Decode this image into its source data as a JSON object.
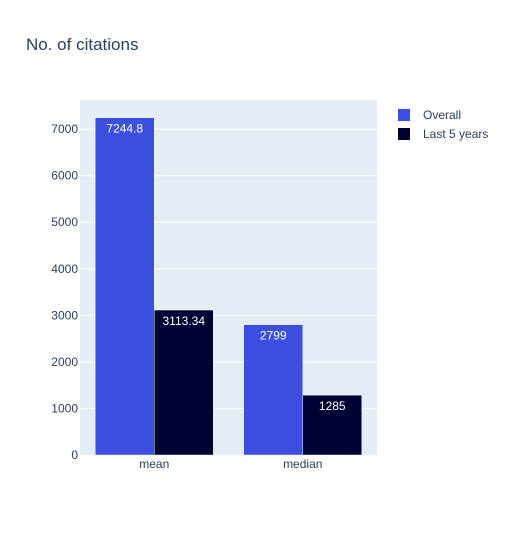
{
  "chart_data": {
    "type": "bar",
    "title": "No. of citations",
    "categories": [
      "mean",
      "median"
    ],
    "series": [
      {
        "name": "Overall",
        "values": [
          7244.8,
          2799
        ],
        "labels": [
          "7244.8",
          "2799"
        ],
        "color": "#3c4fe0"
      },
      {
        "name": "Last 5 years",
        "values": [
          3113.34,
          1285
        ],
        "labels": [
          "3113.34",
          "1285"
        ],
        "color": "#000033"
      }
    ],
    "yticks": [
      0,
      1000,
      2000,
      3000,
      4000,
      5000,
      6000,
      7000
    ],
    "ylim": [
      0,
      7626
    ],
    "grid": true,
    "legend_position": "top-right",
    "plot_background": "#e5ecf6"
  }
}
